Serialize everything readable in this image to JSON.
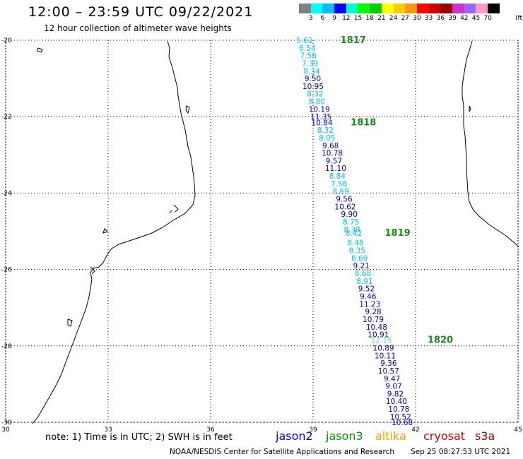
{
  "header": {
    "title": "12:00 – 23:59 UTC 09/22/2021",
    "subtitle": "12 hour collection of altimeter wave heights"
  },
  "legend": {
    "unit": "(ft)",
    "colors": [
      "#808080",
      "#00ffff",
      "#00bfff",
      "#0000ff",
      "#00ffcc",
      "#00ff00",
      "#00cc00",
      "#ffff00",
      "#ffcc00",
      "#ff9900",
      "#ff0000",
      "#cc0000",
      "#990000",
      "#cc33cc",
      "#9966ff",
      "#ff99cc",
      "#000000"
    ],
    "labels": [
      "3",
      "6",
      "9",
      "12",
      "15",
      "18",
      "21",
      "24",
      "27",
      "30",
      "33",
      "36",
      "39",
      "42",
      "45",
      "70"
    ]
  },
  "map": {
    "lon_labels": [
      "30",
      "33",
      "36",
      "39",
      "42",
      "45"
    ],
    "lat_labels": [
      "-20",
      "-22",
      "-24",
      "-26",
      "-28",
      "-30"
    ],
    "lon_range": [
      30,
      45
    ],
    "lat_range": [
      -30,
      -20
    ]
  },
  "passes": [
    {
      "label": "1817",
      "lon": 39.8,
      "lat": -20.0
    },
    {
      "label": "1818",
      "lon": 40.1,
      "lat": -22.15
    },
    {
      "label": "1819",
      "lon": 41.1,
      "lat": -25.05
    },
    {
      "label": "1820",
      "lon": 42.35,
      "lat": -27.85
    }
  ],
  "observations": [
    {
      "v": "5.62",
      "lon": 38.75,
      "lat": -20.0,
      "c": "#00bfff"
    },
    {
      "v": "6.54",
      "lon": 38.83,
      "lat": -20.2,
      "c": "#00bfff"
    },
    {
      "v": "7.56",
      "lon": 38.86,
      "lat": -20.4,
      "c": "#00bfff"
    },
    {
      "v": "7.39",
      "lon": 38.91,
      "lat": -20.6,
      "c": "#00bfff"
    },
    {
      "v": "8.34",
      "lon": 38.96,
      "lat": -20.8,
      "c": "#00bfff"
    },
    {
      "v": "9.50",
      "lon": 38.99,
      "lat": -21.0,
      "c": "#0000c0"
    },
    {
      "v": "10.95",
      "lon": 39.0,
      "lat": -21.2,
      "c": "#0000c0"
    },
    {
      "v": "8.32",
      "lon": 39.06,
      "lat": -21.4,
      "c": "#00bfff"
    },
    {
      "v": "8.80",
      "lon": 39.11,
      "lat": -21.6,
      "c": "#00bfff"
    },
    {
      "v": "10.19",
      "lon": 39.18,
      "lat": -21.8,
      "c": "#0000c0"
    },
    {
      "v": "11.35",
      "lon": 39.23,
      "lat": -22.0,
      "c": "#0000c0"
    },
    {
      "v": "10.84",
      "lon": 39.26,
      "lat": -22.15,
      "c": "#0000c0"
    },
    {
      "v": "8.32",
      "lon": 39.36,
      "lat": -22.35,
      "c": "#00bfff"
    },
    {
      "v": "8.05",
      "lon": 39.41,
      "lat": -22.55,
      "c": "#00bfff"
    },
    {
      "v": "9.68",
      "lon": 39.51,
      "lat": -22.75,
      "c": "#0000c0"
    },
    {
      "v": "10.78",
      "lon": 39.56,
      "lat": -22.95,
      "c": "#0000c0"
    },
    {
      "v": "9.57",
      "lon": 39.61,
      "lat": -23.15,
      "c": "#0000c0"
    },
    {
      "v": "11.10",
      "lon": 39.66,
      "lat": -23.35,
      "c": "#0000c0"
    },
    {
      "v": "8.84",
      "lon": 39.71,
      "lat": -23.55,
      "c": "#00bfff"
    },
    {
      "v": "7.56",
      "lon": 39.76,
      "lat": -23.75,
      "c": "#00bfff"
    },
    {
      "v": "8.69",
      "lon": 39.81,
      "lat": -23.95,
      "c": "#00bfff"
    },
    {
      "v": "9.56",
      "lon": 39.91,
      "lat": -24.15,
      "c": "#0000c0"
    },
    {
      "v": "10.62",
      "lon": 39.94,
      "lat": -24.35,
      "c": "#0000c0"
    },
    {
      "v": "9.90",
      "lon": 40.06,
      "lat": -24.55,
      "c": "#0000c0"
    },
    {
      "v": "8.75",
      "lon": 40.11,
      "lat": -24.75,
      "c": "#00bfff"
    },
    {
      "v": "8.38",
      "lon": 40.14,
      "lat": -24.95,
      "c": "#00bfff"
    },
    {
      "v": "8.42",
      "lon": 40.19,
      "lat": -25.05,
      "c": "#00bfff"
    },
    {
      "v": "8.48",
      "lon": 40.24,
      "lat": -25.3,
      "c": "#00bfff"
    },
    {
      "v": "8.35",
      "lon": 40.29,
      "lat": -25.5,
      "c": "#00bfff"
    },
    {
      "v": "8.69",
      "lon": 40.36,
      "lat": -25.7,
      "c": "#00bfff"
    },
    {
      "v": "9.21",
      "lon": 40.41,
      "lat": -25.9,
      "c": "#0000c0"
    },
    {
      "v": "8.68",
      "lon": 40.46,
      "lat": -26.1,
      "c": "#00bfff"
    },
    {
      "v": "8.91",
      "lon": 40.51,
      "lat": -26.3,
      "c": "#00bfff"
    },
    {
      "v": "9.52",
      "lon": 40.56,
      "lat": -26.5,
      "c": "#0000c0"
    },
    {
      "v": "9.46",
      "lon": 40.61,
      "lat": -26.7,
      "c": "#0000c0"
    },
    {
      "v": "11.23",
      "lon": 40.66,
      "lat": -26.9,
      "c": "#0000c0"
    },
    {
      "v": "9.28",
      "lon": 40.76,
      "lat": -27.1,
      "c": "#0000c0"
    },
    {
      "v": "10.79",
      "lon": 40.76,
      "lat": -27.3,
      "c": "#0000c0"
    },
    {
      "v": "10.48",
      "lon": 40.86,
      "lat": -27.5,
      "c": "#0000c0"
    },
    {
      "v": "10.91",
      "lon": 40.91,
      "lat": -27.7,
      "c": "#0000c0"
    },
    {
      "v": "12.15",
      "lon": 41.0,
      "lat": -27.85,
      "c": "#66dd88"
    },
    {
      "v": "10.89",
      "lon": 41.06,
      "lat": -28.05,
      "c": "#0000c0"
    },
    {
      "v": "10.11",
      "lon": 41.11,
      "lat": -28.25,
      "c": "#0000c0"
    },
    {
      "v": "9.36",
      "lon": 41.21,
      "lat": -28.45,
      "c": "#0000c0"
    },
    {
      "v": "10.57",
      "lon": 41.21,
      "lat": -28.65,
      "c": "#0000c0"
    },
    {
      "v": "9.47",
      "lon": 41.31,
      "lat": -28.85,
      "c": "#0000c0"
    },
    {
      "v": "9.07",
      "lon": 41.36,
      "lat": -29.05,
      "c": "#0000c0"
    },
    {
      "v": "9.82",
      "lon": 41.41,
      "lat": -29.25,
      "c": "#0000c0"
    },
    {
      "v": "10.40",
      "lon": 41.44,
      "lat": -29.45,
      "c": "#0000c0"
    },
    {
      "v": "10.78",
      "lon": 41.51,
      "lat": -29.65,
      "c": "#0000c0"
    },
    {
      "v": "10.52",
      "lon": 41.56,
      "lat": -29.85,
      "c": "#0000c0"
    },
    {
      "v": "10.68",
      "lon": 41.61,
      "lat": -30.0,
      "c": "#0000c0"
    }
  ],
  "footer": {
    "note": "note: 1) Time is in UTC; 2) SWH is in feet",
    "satellites": [
      {
        "name": "jason2",
        "color": "#0000cc"
      },
      {
        "name": "jason3",
        "color": "#009900"
      },
      {
        "name": "altika",
        "color": "#ff9900"
      },
      {
        "name": "cryosat",
        "color": "#cc0000"
      },
      {
        "name": "s3a",
        "color": "#990000"
      }
    ],
    "credit": "NOAA/NESDIS Center for Satellite Applications and Research",
    "timestamp": "Sep 25 08:27:53 UTC 2021"
  }
}
